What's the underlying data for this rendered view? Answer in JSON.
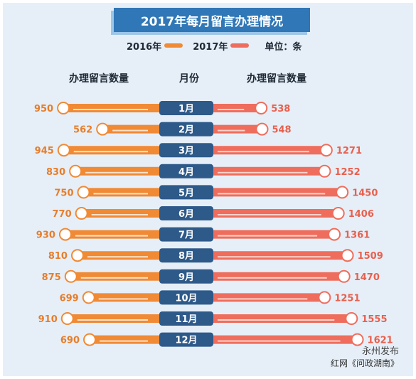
{
  "title": "2017年每月留言办理情况",
  "legend": {
    "series_2016": "2016年",
    "series_2017": "2017年",
    "unit": "单位：条"
  },
  "headers": {
    "left": "办理留言数量",
    "center": "月份",
    "right": "办理留言数量"
  },
  "watermark": {
    "line1": "永州发布",
    "line2": "红网《问政湖南》"
  },
  "colors": {
    "orange": "#f08a35",
    "salmon": "#ef6d5c",
    "navy": "#2e5a8a",
    "title_bg": "#2f77b6",
    "background": "#e6eff8",
    "label_orange": "#e67e2c",
    "label_salmon": "#e8604e"
  },
  "chart_data": {
    "type": "bar",
    "title": "2017年每月留言办理情况",
    "categories": [
      "1月",
      "2月",
      "3月",
      "4月",
      "5月",
      "6月",
      "7月",
      "8月",
      "9月",
      "10月",
      "11月",
      "12月"
    ],
    "series": [
      {
        "name": "2016年",
        "values": [
          950,
          562,
          945,
          830,
          750,
          770,
          930,
          810,
          875,
          699,
          910,
          690
        ]
      },
      {
        "name": "2017年",
        "values": [
          538,
          548,
          1271,
          1252,
          1450,
          1406,
          1361,
          1509,
          1470,
          1251,
          1555,
          1621
        ]
      }
    ]
  }
}
